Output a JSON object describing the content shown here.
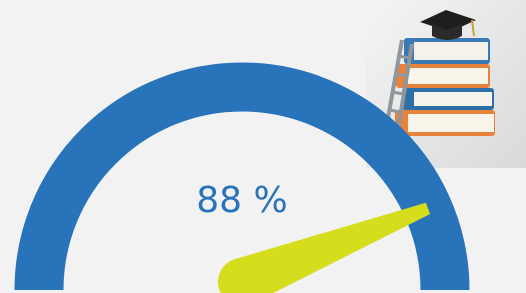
{
  "chart_data": {
    "type": "gauge",
    "values": [
      88
    ],
    "value_labels": [
      "88 %"
    ],
    "ylim": [
      0,
      100
    ],
    "color": "#d6dd1c",
    "track_color": "#2873b9"
  }
}
